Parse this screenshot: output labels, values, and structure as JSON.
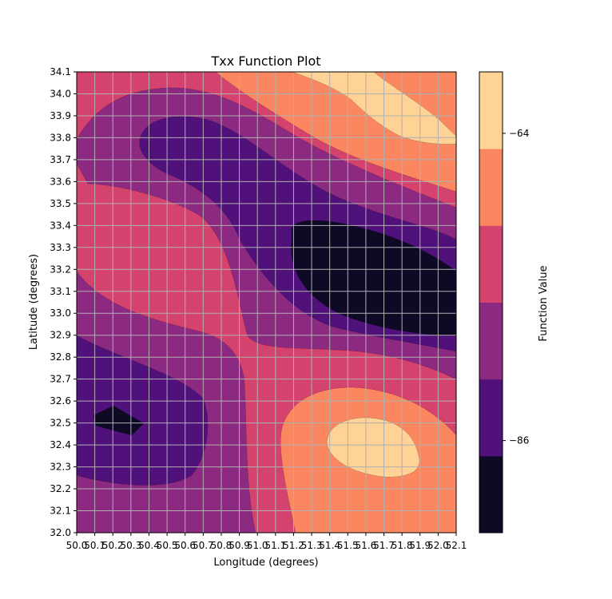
{
  "chart_data": {
    "type": "contour",
    "title": "Txx Function Plot",
    "xlabel": "Longitude (degrees)",
    "ylabel": "Latitude (degrees)",
    "xlim": [
      50.0,
      52.1
    ],
    "ylim": [
      32.0,
      34.1
    ],
    "x_ticks": [
      "50.0",
      "50.1",
      "50.2",
      "50.3",
      "50.4",
      "50.5",
      "50.6",
      "50.7",
      "50.8",
      "50.9",
      "51.0",
      "51.1",
      "51.2",
      "51.3",
      "51.4",
      "51.5",
      "51.6",
      "51.7",
      "51.8",
      "51.9",
      "52.0",
      "52.1"
    ],
    "y_ticks": [
      "32.0",
      "32.1",
      "32.2",
      "32.3",
      "32.4",
      "32.5",
      "32.6",
      "32.7",
      "32.8",
      "32.9",
      "33.0",
      "33.1",
      "33.2",
      "33.3",
      "33.4",
      "33.5",
      "33.6",
      "33.7",
      "33.8",
      "33.9",
      "34.0",
      "34.1"
    ],
    "grid": true,
    "colormap": "magma",
    "levels": [
      -92.6,
      -86.0,
      -81.6,
      -77.2,
      -72.8,
      -68.4,
      -64.0,
      -59.6
    ],
    "level_colors": [
      "#0e0a26",
      "#50117a",
      "#8c2981",
      "#d3436e",
      "#fb8761",
      "#fed395"
    ],
    "colorbar": {
      "label": "Function Value",
      "ticks": [
        {
          "value": -64,
          "label": "−64"
        },
        {
          "value": -86,
          "label": "−86"
        }
      ]
    },
    "regions": [
      {
        "level": -86.0,
        "desc": "darkest basin",
        "centers": [
          [
            51.75,
            33.15
          ],
          [
            50.2,
            32.5
          ]
        ]
      },
      {
        "level": -72.8,
        "desc": "brightest peak",
        "centers": [
          [
            51.7,
            32.45
          ],
          [
            51.75,
            34.0
          ]
        ]
      }
    ]
  }
}
